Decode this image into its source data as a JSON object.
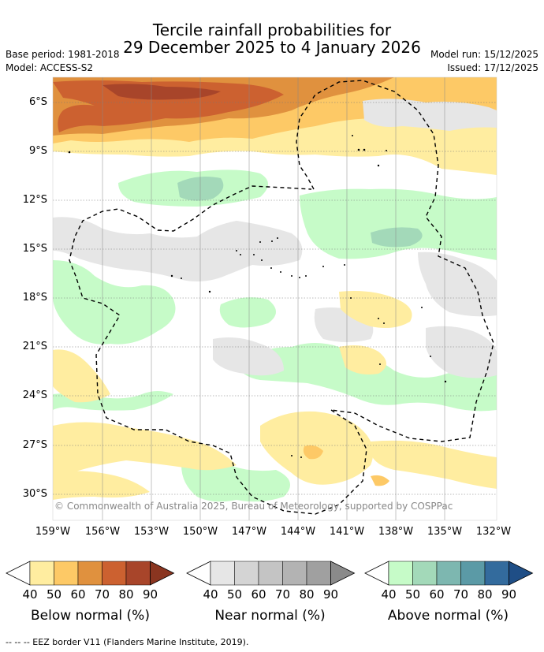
{
  "title_line1": "Tercile rainfall probabilities for",
  "title_line2": "29 December 2025 to 4 January 2026",
  "base_period": "Base period: 1981-2018",
  "model": "Model: ACCESS-S2",
  "model_run": "Model run: 15/12/2025",
  "issued": "Issued: 17/12/2025",
  "copyright": "© Commonwealth of Australia 2025, Bureau of Meteorology, supported by COSPPac",
  "lat_labels": [
    "6°S",
    "9°S",
    "12°S",
    "15°S",
    "18°S",
    "21°S",
    "24°S",
    "27°S",
    "30°S"
  ],
  "lon_labels": [
    "159°W",
    "156°W",
    "153°W",
    "150°W",
    "147°W",
    "144°W",
    "141°W",
    "138°W",
    "135°W",
    "132°W"
  ],
  "legends": [
    {
      "title": "Below normal (%)",
      "ticks": [
        "40",
        "50",
        "60",
        "70",
        "80",
        "90"
      ],
      "colors": [
        "#ffeda0",
        "#fdc966",
        "#e0913e",
        "#cc6130",
        "#a8452a",
        "#8a3520"
      ]
    },
    {
      "title": "Near normal (%)",
      "ticks": [
        "40",
        "50",
        "60",
        "70",
        "80",
        "90"
      ],
      "colors": [
        "#e6e6e6",
        "#d4d4d4",
        "#c4c4c4",
        "#b3b3b3",
        "#a0a0a0",
        "#8a8a8a"
      ]
    },
    {
      "title": "Above normal (%)",
      "ticks": [
        "40",
        "50",
        "60",
        "70",
        "80",
        "90"
      ],
      "colors": [
        "#c6fbc8",
        "#a3d9b9",
        "#7db7b0",
        "#5b9aa6",
        "#336b9d",
        "#1f4e86"
      ]
    }
  ],
  "footer": "--  --  -- EEZ border V11 (Flanders Marine Institute, 2019)."
}
